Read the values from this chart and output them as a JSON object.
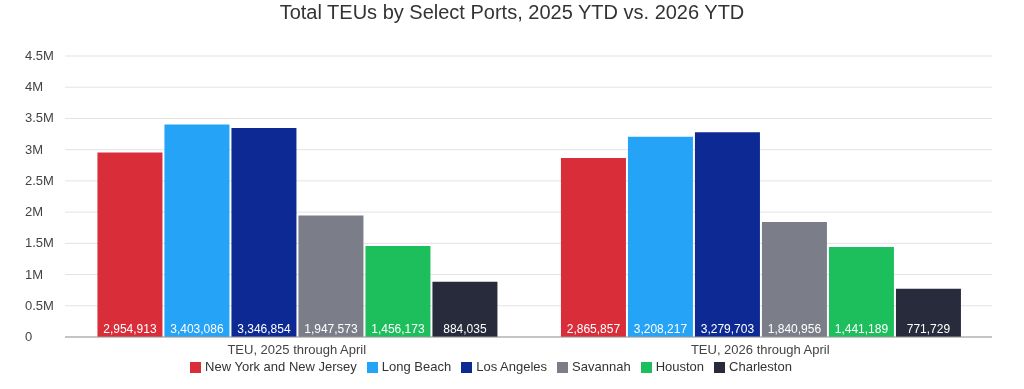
{
  "chart_data": {
    "type": "bar",
    "title": "Total TEUs by Select Ports, 2025 YTD vs. 2026 YTD",
    "categories": [
      "TEU, 2025 through April",
      "TEU, 2026 through April"
    ],
    "series": [
      {
        "name": "New York and New Jersey",
        "color": "#d92d3a",
        "values": [
          2954913,
          2865857
        ],
        "value_labels": [
          "2,954,913",
          "2,865,857"
        ]
      },
      {
        "name": "Long Beach",
        "color": "#24a3f7",
        "values": [
          3403086,
          3208217
        ],
        "value_labels": [
          "3,403,086",
          "3,208,217"
        ]
      },
      {
        "name": "Los Angeles",
        "color": "#0d2a94",
        "values": [
          3346854,
          3279703
        ],
        "value_labels": [
          "3,346,854",
          "3,279,703"
        ]
      },
      {
        "name": "Savannah",
        "color": "#7b7e88",
        "values": [
          1947573,
          1840956
        ],
        "value_labels": [
          "1,947,573",
          "1,840,956"
        ]
      },
      {
        "name": "Houston",
        "color": "#1dbf5c",
        "values": [
          1456173,
          1441189
        ],
        "value_labels": [
          "1,456,173",
          "1,441,189"
        ]
      },
      {
        "name": "Charleston",
        "color": "#272b3b",
        "values": [
          884035,
          771729
        ],
        "value_labels": [
          "884,035",
          "771,729"
        ]
      }
    ],
    "ylim": [
      0,
      4500000
    ],
    "yticks": [
      0,
      {
        "value": 500000,
        "label": "0.5M"
      },
      {
        "value": 1000000,
        "label": "1M"
      },
      {
        "value": 1500000,
        "label": "1.5M"
      },
      {
        "value": 2000000,
        "label": "2M"
      },
      {
        "value": 2500000,
        "label": "2.5M"
      },
      {
        "value": 3000000,
        "label": "3M"
      },
      {
        "value": 3500000,
        "label": "3.5M"
      },
      {
        "value": 4000000,
        "label": "4M"
      },
      {
        "value": 4500000,
        "label": "4.5M"
      }
    ],
    "grid": "y",
    "legend": "bottom"
  }
}
